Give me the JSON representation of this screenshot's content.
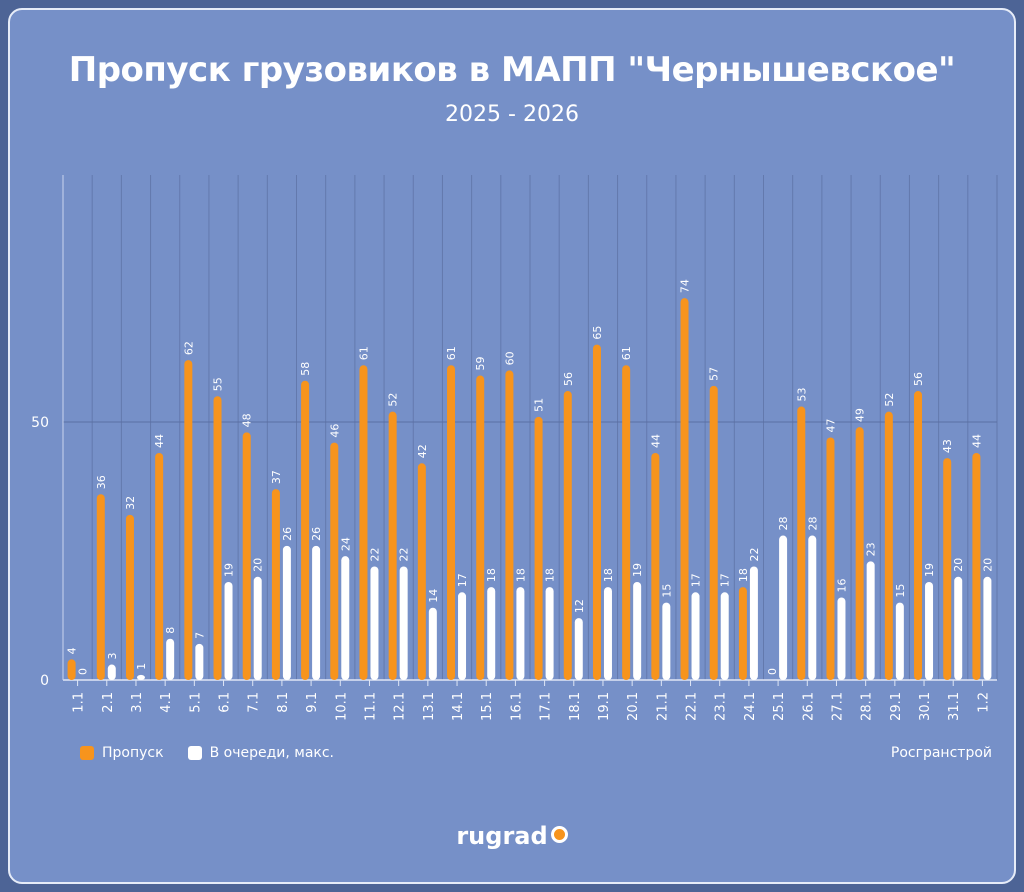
{
  "chart_data": {
    "type": "bar",
    "title": "Пропуск грузовиков в МАПП \"Чернышевское\"",
    "subtitle": "2025 - 2026",
    "categories": [
      "1.1",
      "2.1",
      "3.1",
      "4.1",
      "5.1",
      "6.1",
      "7.1",
      "8.1",
      "9.1",
      "10.1",
      "11.1",
      "12.1",
      "13.1",
      "14.1",
      "15.1",
      "16.1",
      "17.1",
      "18.1",
      "19.1",
      "20.1",
      "21.1",
      "22.1",
      "23.1",
      "24.1",
      "25.1",
      "26.1",
      "27.1",
      "28.1",
      "29.1",
      "30.1",
      "31.1",
      "1.2"
    ],
    "series": [
      {
        "name": "Пропуск",
        "color": "#f7941d",
        "values": [
          4,
          36,
          32,
          44,
          62,
          55,
          48,
          37,
          58,
          46,
          61,
          52,
          42,
          61,
          59,
          60,
          51,
          56,
          65,
          61,
          44,
          74,
          57,
          18,
          0,
          53,
          47,
          49,
          52,
          56,
          43,
          44
        ]
      },
      {
        "name": "В очереди, макс.",
        "color": "#ffffff",
        "values": [
          0,
          3,
          1,
          8,
          7,
          19,
          20,
          26,
          26,
          24,
          22,
          22,
          14,
          17,
          18,
          18,
          18,
          12,
          18,
          19,
          15,
          17,
          17,
          22,
          28,
          28,
          16,
          23,
          15,
          19,
          20,
          20
        ]
      }
    ],
    "yticks": [
      "0",
      "50"
    ],
    "ylim": [
      0,
      100
    ],
    "grid": true,
    "legend": "bottom-left"
  },
  "source": "Росгранстрой",
  "logo": "rugrad"
}
